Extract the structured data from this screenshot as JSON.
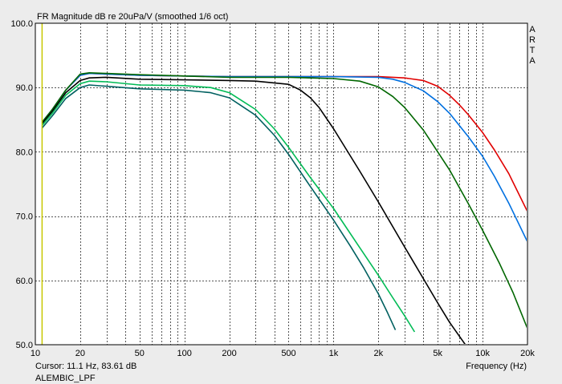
{
  "window": {
    "cursor_readout": "Cursor: 11.1 Hz, 83.61 dB",
    "file_label": "ALEMBIC_LPF",
    "brand_vertical": [
      "A",
      "R",
      "T",
      "A"
    ]
  },
  "chart_data": {
    "type": "line",
    "title": "FR Magnitude dB re 20uPa/V (smoothed 1/6 oct)",
    "xlabel": "Frequency (Hz)",
    "ylabel": "",
    "x_scale": "log",
    "xlim": [
      10,
      20000
    ],
    "ylim": [
      50,
      100
    ],
    "grid": true,
    "x_tick_labels": [
      {
        "v": 10,
        "label": "10"
      },
      {
        "v": 20,
        "label": "20"
      },
      {
        "v": 50,
        "label": "50"
      },
      {
        "v": 100,
        "label": "100"
      },
      {
        "v": 200,
        "label": "200"
      },
      {
        "v": 500,
        "label": "500"
      },
      {
        "v": 1000,
        "label": "1k"
      },
      {
        "v": 2000,
        "label": "2k"
      },
      {
        "v": 5000,
        "label": "5k"
      },
      {
        "v": 10000,
        "label": "10k"
      },
      {
        "v": 20000,
        "label": "20k"
      }
    ],
    "y_tick_labels": [
      {
        "v": 50,
        "label": "50.0"
      },
      {
        "v": 60,
        "label": "60.0"
      },
      {
        "v": 70,
        "label": "70.0"
      },
      {
        "v": 80,
        "label": "80.0"
      },
      {
        "v": 90,
        "label": "90.0"
      },
      {
        "v": 100,
        "label": "100.0"
      }
    ],
    "cursor_x": 11.1,
    "colors": {
      "background": "#ffffff",
      "frame": "#000000",
      "grid": "#555555",
      "cursor": "#c8c800"
    },
    "series": [
      {
        "color": "#e00000",
        "x": [
          11.1,
          13,
          16,
          20,
          23,
          30,
          50,
          100,
          200,
          500,
          1000,
          2000,
          3000,
          4000,
          5000,
          6000,
          7000,
          8000,
          10000,
          12000,
          15000,
          20000
        ],
        "y": [
          84.6,
          86.6,
          89.6,
          91.9,
          92.2,
          92.1,
          91.9,
          91.8,
          91.7,
          91.7,
          91.7,
          91.7,
          91.5,
          91.1,
          90.2,
          88.8,
          87.3,
          85.8,
          83.0,
          80.3,
          76.6,
          70.7
        ]
      },
      {
        "color": "#0070e0",
        "x": [
          11.1,
          13,
          16,
          20,
          23,
          30,
          50,
          100,
          200,
          500,
          1000,
          2000,
          2500,
          3000,
          4000,
          5000,
          6000,
          8000,
          10000,
          12000,
          15000,
          20000
        ],
        "y": [
          84.6,
          86.6,
          89.6,
          91.9,
          92.2,
          92.1,
          91.9,
          91.8,
          91.7,
          91.7,
          91.7,
          91.6,
          91.3,
          90.8,
          89.5,
          87.8,
          86.0,
          82.4,
          79.3,
          76.2,
          72.0,
          66.0
        ]
      },
      {
        "color": "#006600",
        "x": [
          11.1,
          13,
          16,
          20,
          23,
          30,
          50,
          100,
          200,
          500,
          1000,
          1500,
          2000,
          2500,
          3000,
          4000,
          5000,
          6000,
          8000,
          10000,
          13000,
          16000,
          20000
        ],
        "y": [
          84.6,
          86.6,
          89.6,
          92.1,
          92.3,
          92.2,
          92.0,
          91.8,
          91.6,
          91.6,
          91.4,
          91.0,
          90.1,
          88.6,
          86.9,
          83.4,
          80.0,
          77.2,
          72.0,
          67.8,
          62.6,
          58.1,
          52.5
        ]
      },
      {
        "color": "#000000",
        "x": [
          11.1,
          13,
          16,
          20,
          23,
          30,
          50,
          100,
          200,
          300,
          500,
          600,
          700,
          800,
          1000,
          1500,
          2000,
          3000,
          4000,
          5000,
          6000,
          7000,
          8000
        ],
        "y": [
          84.4,
          86.3,
          89.2,
          91.1,
          91.5,
          91.6,
          91.3,
          91.2,
          91.1,
          91.0,
          90.5,
          89.6,
          88.4,
          86.9,
          83.6,
          77.0,
          72.2,
          65.2,
          60.3,
          56.5,
          53.5,
          51.3,
          49.4
        ]
      },
      {
        "color": "#00bb55",
        "x": [
          11.1,
          13,
          16,
          20,
          23,
          30,
          50,
          100,
          150,
          200,
          300,
          400,
          500,
          700,
          1000,
          1500,
          2000,
          2500,
          3000,
          3500
        ],
        "y": [
          84.1,
          86.0,
          88.8,
          90.6,
          91.0,
          90.9,
          90.4,
          90.3,
          90.0,
          89.2,
          86.6,
          83.6,
          80.7,
          76.0,
          71.2,
          65.1,
          60.8,
          57.3,
          54.5,
          52.0
        ]
      },
      {
        "color": "#006060",
        "x": [
          11.1,
          13,
          16,
          20,
          23,
          30,
          50,
          100,
          150,
          200,
          300,
          400,
          500,
          700,
          1000,
          1300,
          1600,
          2000,
          2300,
          2600
        ],
        "y": [
          83.7,
          85.6,
          88.3,
          90.0,
          90.4,
          90.2,
          89.8,
          89.6,
          89.2,
          88.4,
          85.7,
          82.6,
          79.6,
          74.6,
          69.4,
          65.3,
          61.9,
          57.9,
          55.0,
          52.3
        ]
      }
    ]
  }
}
